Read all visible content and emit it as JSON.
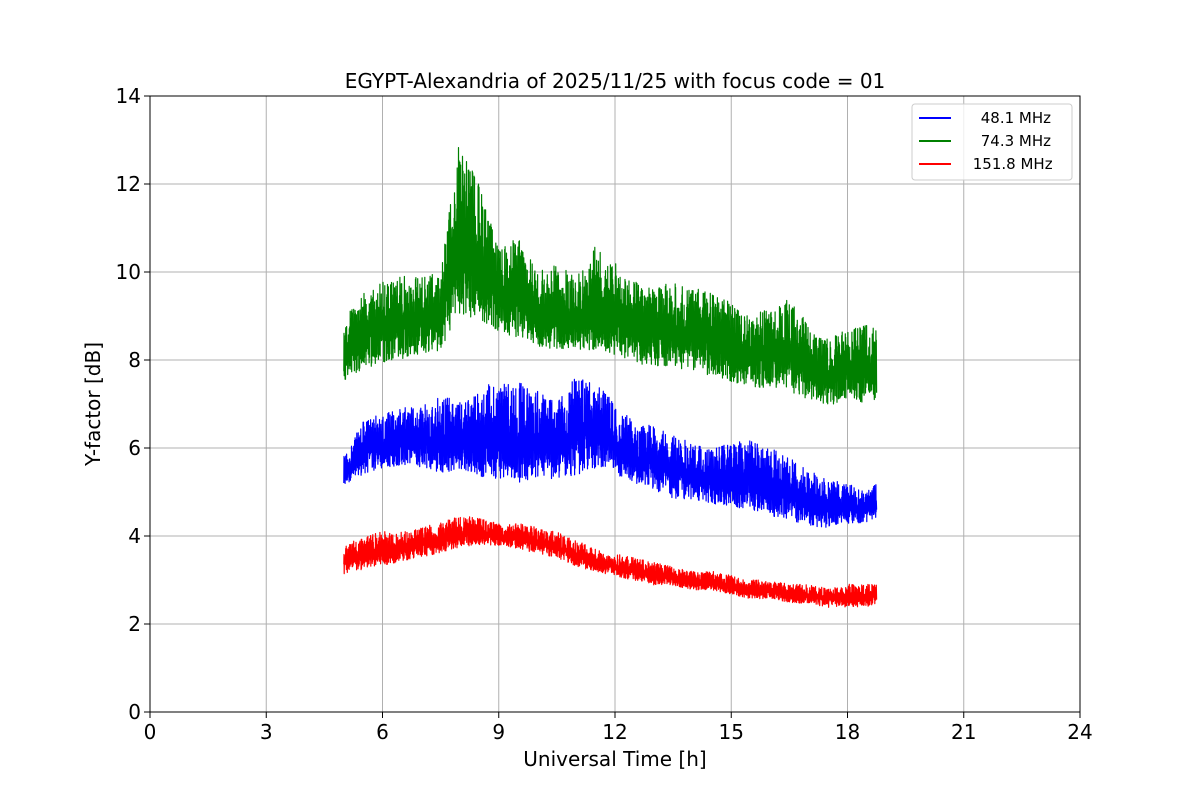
{
  "chart_data": {
    "type": "line",
    "title": "EGYPT-Alexandria of 2025/11/25 with focus code = 01",
    "xlabel": "Universal Time [h]",
    "ylabel": "Y-factor [dB]",
    "xlim": [
      0,
      24
    ],
    "ylim": [
      0,
      14
    ],
    "xticks": [
      0,
      3,
      6,
      9,
      12,
      15,
      18,
      21,
      24
    ],
    "yticks": [
      0,
      2,
      4,
      6,
      8,
      10,
      12,
      14
    ],
    "xtick_labels": [
      "0",
      "3",
      "6",
      "9",
      "12",
      "15",
      "18",
      "21",
      "24"
    ],
    "ytick_labels": [
      "0",
      "2",
      "4",
      "6",
      "8",
      "10",
      "12",
      "14"
    ],
    "grid": true,
    "legend_position": "top-right",
    "series": [
      {
        "name": " 48.1 MHz",
        "color": "#0000ff",
        "x": [
          5.0,
          5.5,
          6.0,
          6.5,
          7.0,
          7.5,
          8.0,
          8.5,
          9.0,
          9.5,
          10.0,
          10.5,
          11.0,
          11.5,
          12.0,
          12.5,
          13.0,
          13.5,
          14.0,
          14.5,
          15.0,
          15.5,
          16.0,
          16.5,
          17.0,
          17.5,
          18.0,
          18.5,
          18.75
        ],
        "low": [
          5.0,
          5.2,
          5.3,
          5.4,
          5.3,
          5.1,
          5.2,
          5.0,
          4.9,
          4.8,
          5.0,
          4.9,
          5.0,
          5.2,
          5.1,
          4.9,
          4.8,
          4.6,
          4.6,
          4.5,
          4.4,
          4.3,
          4.2,
          4.1,
          4.0,
          4.0,
          4.1,
          4.2,
          4.3
        ],
        "high": [
          5.8,
          6.6,
          6.8,
          6.9,
          7.0,
          7.2,
          7.1,
          7.3,
          7.6,
          7.5,
          7.3,
          7.2,
          7.6,
          7.5,
          7.0,
          6.6,
          6.5,
          6.3,
          6.1,
          6.0,
          6.1,
          6.2,
          6.0,
          5.8,
          5.5,
          5.3,
          5.2,
          5.0,
          5.2
        ]
      },
      {
        "name": " 74.3 MHz",
        "color": "#008000",
        "x": [
          5.0,
          5.5,
          6.0,
          6.5,
          7.0,
          7.5,
          8.0,
          8.5,
          9.0,
          9.5,
          10.0,
          10.5,
          11.0,
          11.5,
          12.0,
          12.5,
          13.0,
          13.5,
          14.0,
          14.5,
          15.0,
          15.5,
          16.0,
          16.5,
          17.0,
          17.5,
          18.0,
          18.5,
          18.75
        ],
        "low": [
          7.2,
          7.5,
          7.6,
          7.7,
          7.8,
          7.9,
          8.2,
          8.4,
          8.3,
          8.1,
          8.0,
          7.9,
          7.9,
          7.8,
          7.7,
          7.6,
          7.5,
          7.5,
          7.4,
          7.3,
          7.2,
          7.1,
          7.0,
          6.9,
          6.8,
          6.7,
          6.8,
          6.7,
          6.8
        ],
        "high": [
          9.0,
          9.5,
          9.8,
          9.9,
          9.9,
          10.0,
          13.1,
          12.0,
          10.5,
          10.8,
          10.0,
          10.2,
          9.9,
          10.6,
          10.2,
          9.8,
          9.6,
          9.8,
          9.7,
          9.5,
          9.3,
          9.0,
          9.2,
          9.4,
          8.8,
          8.5,
          8.7,
          8.9,
          8.8
        ]
      },
      {
        "name": " 151.8 MHz",
        "color": "#ff0000",
        "x": [
          5.0,
          5.5,
          6.0,
          6.5,
          7.0,
          7.5,
          8.0,
          8.5,
          9.0,
          9.5,
          10.0,
          10.5,
          11.0,
          11.5,
          12.0,
          12.5,
          13.0,
          13.5,
          14.0,
          14.5,
          15.0,
          15.5,
          16.0,
          16.5,
          17.0,
          17.5,
          18.0,
          18.5,
          18.75
        ],
        "low": [
          3.0,
          3.1,
          3.2,
          3.3,
          3.4,
          3.5,
          3.6,
          3.7,
          3.7,
          3.6,
          3.5,
          3.4,
          3.2,
          3.1,
          3.0,
          2.9,
          2.8,
          2.8,
          2.7,
          2.7,
          2.6,
          2.5,
          2.5,
          2.4,
          2.4,
          2.3,
          2.3,
          2.3,
          2.4
        ],
        "high": [
          3.8,
          4.0,
          4.1,
          4.1,
          4.2,
          4.3,
          4.5,
          4.4,
          4.3,
          4.3,
          4.2,
          4.1,
          3.9,
          3.7,
          3.6,
          3.5,
          3.4,
          3.3,
          3.2,
          3.2,
          3.1,
          3.0,
          3.0,
          2.9,
          2.9,
          2.8,
          2.9,
          2.9,
          2.9
        ]
      }
    ]
  }
}
